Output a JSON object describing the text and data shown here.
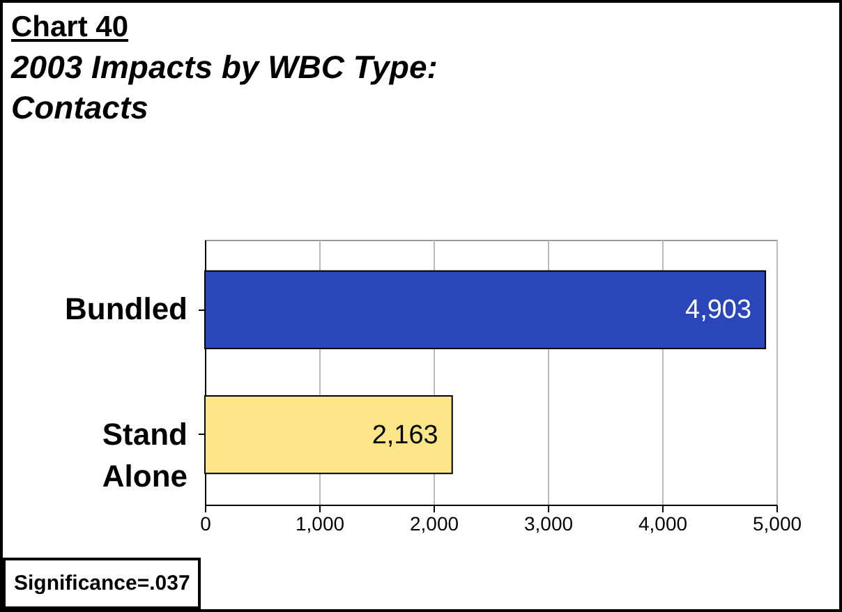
{
  "chart_data": {
    "type": "bar",
    "orientation": "horizontal",
    "title": "Chart 40",
    "subtitle": "2003 Impacts by WBC Type: Contacts",
    "categories": [
      "Bundled",
      "Stand Alone"
    ],
    "values": [
      4903,
      2163
    ],
    "colors": [
      "#2b46b8",
      "#fde58a"
    ],
    "value_labels": [
      "4,903",
      "2,163"
    ],
    "xlim": [
      0,
      5000
    ],
    "xticks": [
      0,
      {
        "value": 1000,
        "label": "1,000"
      },
      {
        "value": 2000,
        "label": "2,000"
      },
      {
        "value": 3000,
        "label": "3,000"
      },
      {
        "value": 4000,
        "label": "4,000"
      },
      {
        "value": 5000,
        "label": "5,000"
      }
    ],
    "grid": "x",
    "annotations": [
      "Significance=.037"
    ]
  }
}
